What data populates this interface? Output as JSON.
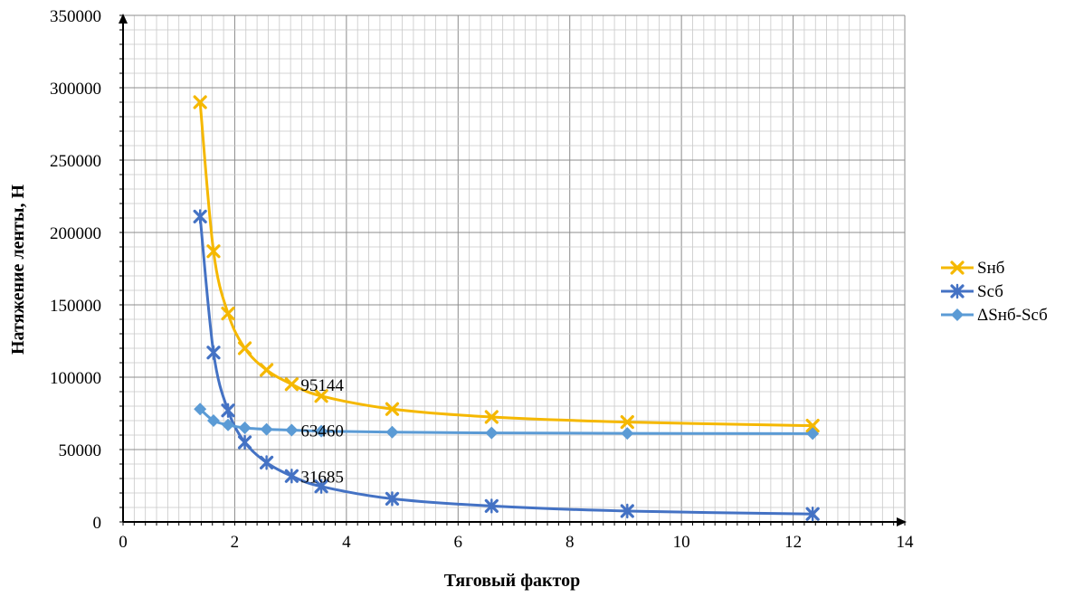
{
  "chart_data": {
    "type": "scatter",
    "title": "",
    "xlabel": "Тяговый фактор",
    "ylabel": "Натяжение ленты, Н",
    "xlim": [
      0,
      14
    ],
    "ylim": [
      0,
      350000
    ],
    "x_ticks": [
      0,
      2,
      4,
      6,
      8,
      10,
      12,
      14
    ],
    "y_ticks": [
      0,
      50000,
      100000,
      150000,
      200000,
      250000,
      300000,
      350000
    ],
    "grid": true,
    "legend_position": "right",
    "series": [
      {
        "name": "Sнб",
        "color": "#f5b800",
        "marker": "x",
        "x": [
          1.38,
          1.62,
          1.88,
          2.18,
          2.57,
          3.02,
          3.55,
          4.82,
          6.6,
          9.03,
          12.35
        ],
        "y": [
          290000,
          187000,
          144000,
          120000,
          105000,
          95144,
          87000,
          78000,
          72500,
          69000,
          66500
        ]
      },
      {
        "name": "Sсб",
        "color": "#4472c4",
        "marker": "star",
        "x": [
          1.38,
          1.62,
          1.88,
          2.18,
          2.57,
          3.02,
          3.55,
          4.82,
          6.6,
          9.03,
          12.35
        ],
        "y": [
          211000,
          117000,
          77000,
          55000,
          41000,
          31685,
          24500,
          16000,
          11000,
          7500,
          5500
        ]
      },
      {
        "name": "ΔSнб-Sсб",
        "color": "#5b9bd5",
        "marker": "diamond",
        "x": [
          1.38,
          1.62,
          1.88,
          2.18,
          2.57,
          3.02,
          3.55,
          4.82,
          6.6,
          9.03,
          12.35
        ],
        "y": [
          78000,
          70000,
          67000,
          65000,
          64000,
          63460,
          62700,
          62000,
          61500,
          61200,
          61000
        ]
      }
    ],
    "data_labels": [
      {
        "text": "95144",
        "x": 3.02,
        "y": 95144
      },
      {
        "text": "63460",
        "x": 3.02,
        "y": 63460
      },
      {
        "text": "31685",
        "x": 3.02,
        "y": 31685
      }
    ]
  }
}
